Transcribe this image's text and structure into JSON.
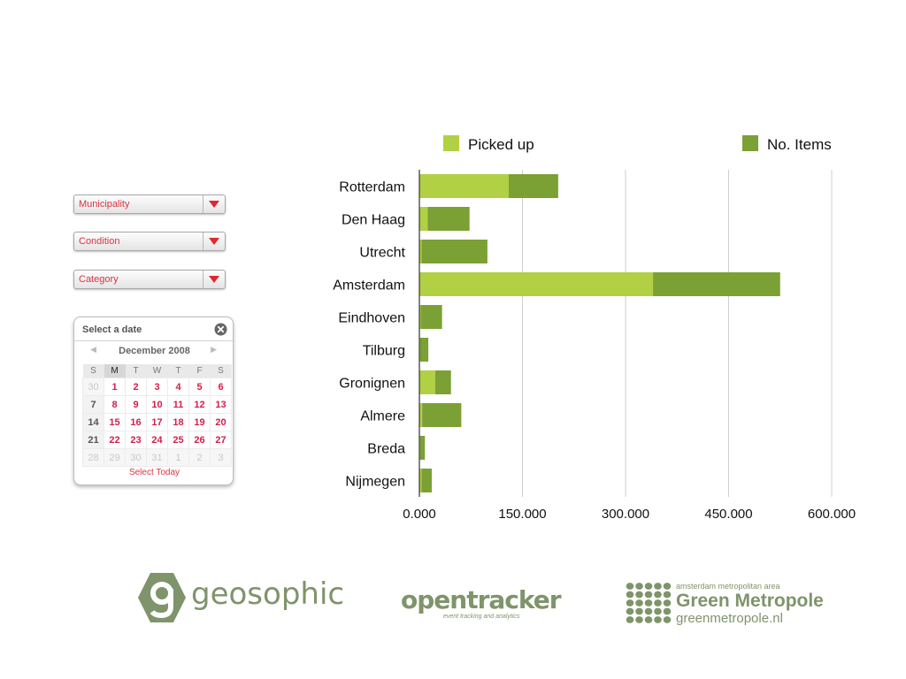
{
  "filters": {
    "municipality_label": "Municipality",
    "condition_label": "Condition",
    "category_label": "Category"
  },
  "calendar": {
    "title": "Select a date",
    "month": "December 2008",
    "weekdays": [
      "S",
      "M",
      "T",
      "W",
      "T",
      "F",
      "S"
    ],
    "weeks": [
      [
        "30",
        "1",
        "2",
        "3",
        "4",
        "5",
        "6"
      ],
      [
        "7",
        "8",
        "9",
        "10",
        "11",
        "12",
        "13"
      ],
      [
        "14",
        "15",
        "16",
        "17",
        "18",
        "19",
        "20"
      ],
      [
        "21",
        "22",
        "23",
        "24",
        "25",
        "26",
        "27"
      ],
      [
        "28",
        "29",
        "30",
        "31",
        "1",
        "2",
        "3"
      ]
    ],
    "select_today": "Select Today"
  },
  "chart_data": {
    "type": "bar",
    "orientation": "horizontal",
    "stacked": true,
    "categories": [
      "Rotterdam",
      "Den Haag",
      "Utrecht",
      "Amsterdam",
      "Eindhoven",
      "Tilburg",
      "Gronignen",
      "Almere",
      "Breda",
      "Nijmegen"
    ],
    "series": [
      {
        "name": "Picked up",
        "color": "#b1d044",
        "values": [
          130000,
          12000,
          3000,
          340000,
          2000,
          1000,
          23000,
          4000,
          1000,
          3000
        ]
      },
      {
        "name": "No. Items",
        "color": "#7ba034",
        "values": [
          72000,
          61000,
          96000,
          185000,
          31000,
          12000,
          23000,
          57000,
          7000,
          15000
        ]
      }
    ],
    "xlim": [
      0,
      600000
    ],
    "ticks": [
      "0.000",
      "150.000",
      "300.000",
      "450.000",
      "600.000"
    ],
    "grid": true,
    "legend_position": "top"
  },
  "logos": {
    "geosophic": "geosophic",
    "opentracker": "opentracker",
    "opentracker_tagline": "event tracking and analytics",
    "green_metropole_small": "amsterdam metropolitan area",
    "green_metropole_name": "Green Metropole",
    "green_metropole_url": "greenmetropole.nl"
  },
  "colors": {
    "accent_red": "#d8343f",
    "logo_green": "#7f946a"
  }
}
